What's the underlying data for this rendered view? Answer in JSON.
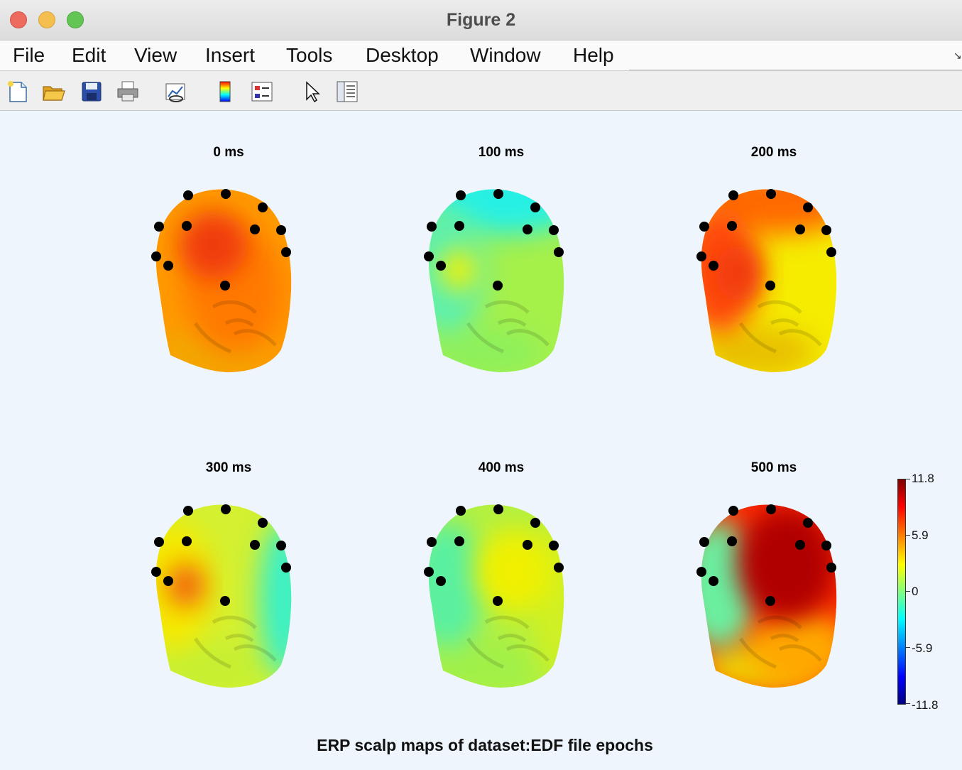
{
  "window": {
    "title": "Figure 2"
  },
  "menu": [
    "File",
    "Edit",
    "View",
    "Insert",
    "Tools",
    "Desktop",
    "Window",
    "Help"
  ],
  "toolbar_icons": [
    "new-figure-icon",
    "open-file-icon",
    "save-icon",
    "print-icon",
    "link-plot-icon",
    "colorbar-icon",
    "legend-icon",
    "pointer-icon",
    "property-inspector-icon"
  ],
  "figure": {
    "suptitle": "ERP scalp maps of dataset:EDF file epochs",
    "plots": [
      {
        "title": "0 ms",
        "colors": {
          "base": "#ff9a00",
          "hot": "#f03a10",
          "warm": "#ff7a00",
          "jaw": "#f2a800"
        }
      },
      {
        "title": "100 ms",
        "colors": {
          "base": "#a6f04a",
          "top": "#25f0e4",
          "left": "#5cf0b0",
          "spot": "#f6f000",
          "jaw": "#8ef05c"
        }
      },
      {
        "title": "200 ms",
        "colors": {
          "base": "#f5ec00",
          "left": "#ff4a0a",
          "top": "#ff6a00",
          "spot": "#f03a10",
          "jaw": "#e8c000"
        }
      },
      {
        "title": "300 ms",
        "colors": {
          "base": "#d4f030",
          "left": "#f6e800",
          "spot": "#f05a10",
          "right": "#3af0c8",
          "jaw": "#c6f030"
        }
      },
      {
        "title": "400 ms",
        "colors": {
          "base": "#b4f040",
          "left": "#5af0a0",
          "center": "#f0f000",
          "right": "#d0f020",
          "jaw": "#a0f048"
        }
      },
      {
        "title": "500 ms",
        "colors": {
          "base": "#ff2a00",
          "hot": "#b00000",
          "left": "#6af0a0",
          "face": "#ffa800",
          "jaw": "#f0d000"
        }
      }
    ],
    "colorbar": {
      "ticks": [
        "11.8",
        "5.9",
        "0",
        "-5.9",
        "-11.8"
      ],
      "max": 11.8,
      "min": -11.8,
      "colormap": "jet"
    }
  }
}
